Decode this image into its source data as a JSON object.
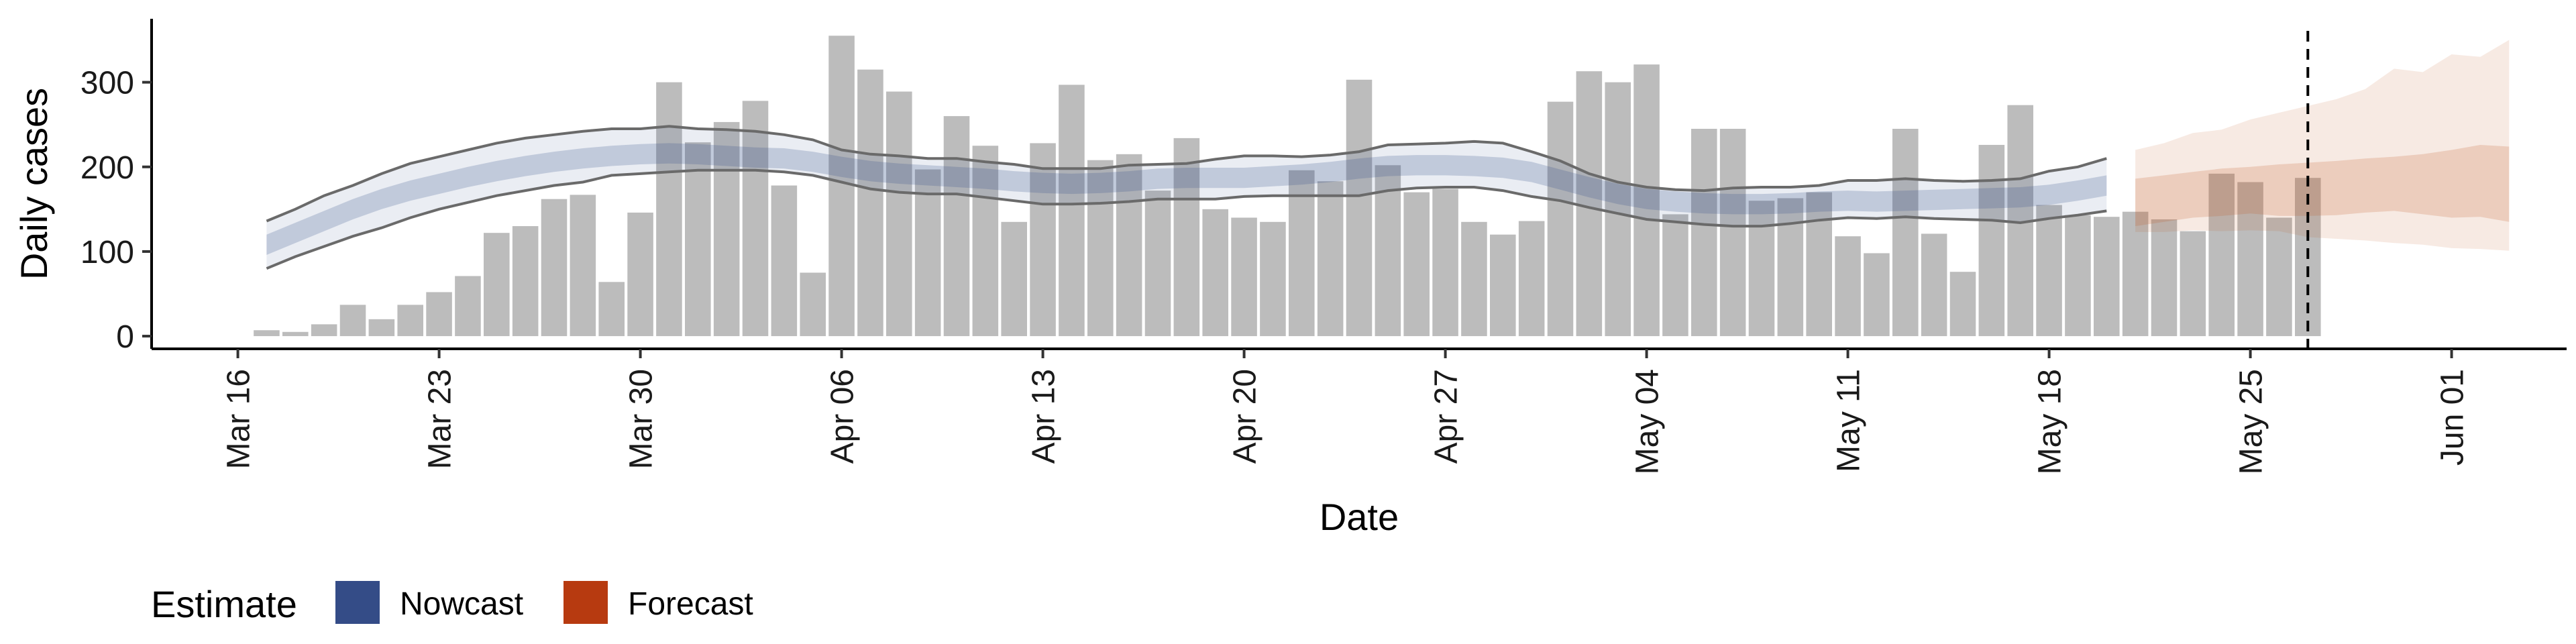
{
  "chart_data": {
    "type": "bar",
    "xlabel": "Date",
    "ylabel": "Daily cases",
    "x_type": "date",
    "xlim": [
      "2020-03-13",
      "2020-06-05"
    ],
    "ylim": [
      -15,
      375
    ],
    "x_ticks": [
      {
        "date": "2020-03-16",
        "label": "Mar 16"
      },
      {
        "date": "2020-03-23",
        "label": "Mar 23"
      },
      {
        "date": "2020-03-30",
        "label": "Mar 30"
      },
      {
        "date": "2020-04-06",
        "label": "Apr 06"
      },
      {
        "date": "2020-04-13",
        "label": "Apr 13"
      },
      {
        "date": "2020-04-20",
        "label": "Apr 20"
      },
      {
        "date": "2020-04-27",
        "label": "Apr 27"
      },
      {
        "date": "2020-05-04",
        "label": "May 04"
      },
      {
        "date": "2020-05-11",
        "label": "May 11"
      },
      {
        "date": "2020-05-18",
        "label": "May 18"
      },
      {
        "date": "2020-05-25",
        "label": "May 25"
      },
      {
        "date": "2020-06-01",
        "label": "Jun 01"
      }
    ],
    "y_ticks": [
      0,
      100,
      200,
      300
    ],
    "bars": {
      "start_date": "2020-03-17",
      "values": [
        7,
        5,
        14,
        37,
        20,
        37,
        52,
        71,
        122,
        130,
        162,
        167,
        64,
        146,
        300,
        229,
        253,
        278,
        178,
        75,
        355,
        315,
        289,
        197,
        260,
        225,
        135,
        228,
        297,
        208,
        215,
        172,
        234,
        150,
        140,
        135,
        196,
        183,
        303,
        202,
        170,
        174,
        135,
        120,
        136,
        277,
        313,
        300,
        321,
        144,
        245,
        245,
        160,
        163,
        170,
        118,
        98,
        245,
        121,
        76,
        226,
        273,
        155,
        143,
        141,
        147,
        138,
        124,
        192,
        182,
        140,
        187
      ]
    },
    "nowcast": {
      "start_date": "2020-03-17",
      "median": [
        108,
        122,
        136,
        150,
        162,
        172,
        180,
        188,
        195,
        201,
        206,
        210,
        213,
        215,
        216,
        215,
        213,
        211,
        210,
        206,
        200,
        195,
        192,
        190,
        188,
        186,
        183,
        181,
        180,
        181,
        183,
        186,
        187,
        187,
        187,
        189,
        191,
        194,
        198,
        201,
        202,
        202,
        201,
        199,
        194,
        185,
        176,
        168,
        162,
        159,
        157,
        156,
        156,
        157,
        159,
        160,
        159,
        160,
        161,
        162,
        163,
        164,
        167,
        172,
        178
      ],
      "inner_lower": [
        96,
        110,
        124,
        138,
        150,
        160,
        168,
        176,
        183,
        189,
        194,
        198,
        201,
        203,
        204,
        203,
        201,
        199,
        198,
        194,
        188,
        183,
        180,
        178,
        176,
        174,
        171,
        169,
        168,
        169,
        171,
        174,
        175,
        175,
        175,
        177,
        179,
        182,
        186,
        189,
        190,
        190,
        189,
        187,
        182,
        173,
        164,
        156,
        150,
        147,
        145,
        144,
        144,
        145,
        147,
        148,
        147,
        148,
        149,
        150,
        151,
        152,
        155,
        160,
        166
      ],
      "inner_upper": [
        120,
        134,
        148,
        162,
        174,
        184,
        192,
        200,
        207,
        213,
        218,
        222,
        225,
        227,
        228,
        227,
        225,
        223,
        222,
        218,
        212,
        207,
        204,
        202,
        200,
        198,
        195,
        193,
        192,
        193,
        195,
        198,
        199,
        199,
        199,
        201,
        203,
        206,
        210,
        213,
        214,
        214,
        213,
        211,
        206,
        197,
        188,
        180,
        174,
        171,
        169,
        168,
        168,
        169,
        171,
        172,
        171,
        172,
        173,
        174,
        175,
        176,
        179,
        184,
        190
      ],
      "outer_lower": [
        80,
        94,
        106,
        118,
        128,
        140,
        150,
        158,
        166,
        172,
        178,
        182,
        190,
        192,
        194,
        196,
        196,
        196,
        194,
        190,
        182,
        174,
        170,
        168,
        168,
        164,
        160,
        156,
        156,
        157,
        159,
        162,
        162,
        162,
        165,
        166,
        166,
        166,
        166,
        172,
        175,
        176,
        176,
        172,
        165,
        160,
        152,
        145,
        138,
        135,
        132,
        130,
        130,
        133,
        137,
        140,
        139,
        141,
        139,
        138,
        137,
        134,
        139,
        143,
        148
      ],
      "outer_upper": [
        136,
        150,
        166,
        178,
        192,
        204,
        212,
        220,
        228,
        234,
        238,
        242,
        245,
        245,
        248,
        245,
        244,
        242,
        238,
        232,
        220,
        215,
        213,
        210,
        210,
        206,
        203,
        198,
        198,
        198,
        202,
        203,
        204,
        209,
        213,
        213,
        212,
        214,
        218,
        226,
        227,
        228,
        230,
        228,
        218,
        207,
        192,
        182,
        176,
        173,
        172,
        175,
        176,
        176,
        178,
        184,
        184,
        186,
        184,
        183,
        184,
        186,
        195,
        200,
        210
      ]
    },
    "forecast": {
      "start_date": "2020-05-21",
      "median": [
        165,
        170,
        172,
        175,
        178,
        175,
        176,
        178,
        180,
        176,
        175,
        177,
        180,
        178
      ],
      "inner_lower": [
        130,
        135,
        140,
        142,
        145,
        142,
        142,
        143,
        146,
        148,
        144,
        140,
        141,
        135
      ],
      "inner_upper": [
        186,
        190,
        194,
        198,
        200,
        203,
        205,
        207,
        210,
        212,
        215,
        220,
        226,
        224
      ],
      "outer_lower": [
        123,
        123,
        125,
        124,
        125,
        124,
        117,
        115,
        113,
        110,
        108,
        104,
        103,
        101
      ],
      "outer_upper": [
        220,
        228,
        240,
        244,
        256,
        264,
        272,
        280,
        292,
        316,
        312,
        333,
        330,
        350
      ]
    },
    "vline": {
      "date": "2020-05-27",
      "style": "dashed"
    },
    "grid": false,
    "legend": {
      "title": "Estimate",
      "position": "bottom-left",
      "items": [
        {
          "label": "Nowcast",
          "color": "#344c87"
        },
        {
          "label": "Forecast",
          "color": "#b73a10"
        }
      ]
    },
    "colors": {
      "bar": "#bcbcbc",
      "nowcast_band": "#344c87",
      "forecast_band": "#c55a2a",
      "outer_line": "#6a6a6a",
      "vline": "#000000"
    }
  }
}
